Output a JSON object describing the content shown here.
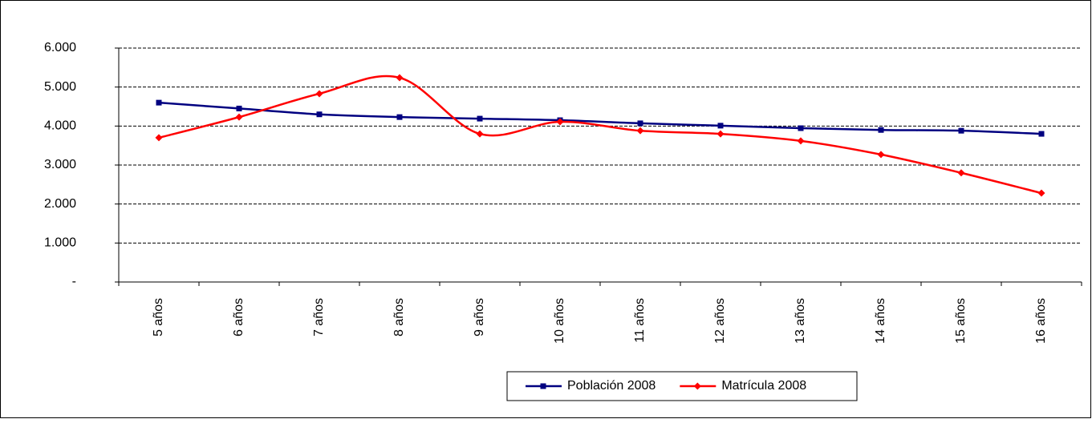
{
  "chart_data": {
    "type": "line",
    "categories": [
      "5 años",
      "6 años",
      "7 años",
      "8 años",
      "9 años",
      "10 años",
      "11 años",
      "12 años",
      "13 años",
      "14 años",
      "15 años",
      "16 años"
    ],
    "series": [
      {
        "name": "Población 2008",
        "color": "#000080",
        "marker": "square",
        "values": [
          4600,
          4450,
          4300,
          4230,
          4190,
          4150,
          4070,
          4010,
          3945,
          3900,
          3880,
          3800
        ]
      },
      {
        "name": "Matrícula 2008",
        "color": "#ff0000",
        "marker": "diamond",
        "values": [
          3700,
          4230,
          4830,
          5240,
          3800,
          4110,
          3880,
          3800,
          3620,
          3270,
          2800,
          2280
        ]
      }
    ],
    "ylim": [
      0,
      6000
    ],
    "yticks": [
      {
        "value": 0,
        "label": "-"
      },
      {
        "value": 1000,
        "label": "1.000"
      },
      {
        "value": 2000,
        "label": "2.000"
      },
      {
        "value": 3000,
        "label": "3.000"
      },
      {
        "value": 4000,
        "label": "4.000"
      },
      {
        "value": 5000,
        "label": "5.000"
      },
      {
        "value": 6000,
        "label": "6.000"
      }
    ],
    "grid": true,
    "smooth": true,
    "legend": "bottom"
  }
}
